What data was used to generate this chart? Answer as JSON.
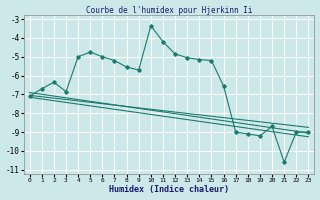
{
  "title": "Courbe de l'humidex pour Hjerkinn Ii",
  "xlabel": "Humidex (Indice chaleur)",
  "ylabel": "",
  "bg_color": "#cce8e8",
  "grid_color": "#ffffff",
  "line_color": "#1a7a6e",
  "xlim": [
    -0.5,
    23.5
  ],
  "ylim": [
    -11.2,
    -2.8
  ],
  "yticks": [
    -11,
    -10,
    -9,
    -8,
    -7,
    -6,
    -5,
    -4,
    -3
  ],
  "xticks": [
    0,
    1,
    2,
    3,
    4,
    5,
    6,
    7,
    8,
    9,
    10,
    11,
    12,
    13,
    14,
    15,
    16,
    17,
    18,
    19,
    20,
    21,
    22,
    23
  ],
  "main_line_x": [
    0,
    1,
    2,
    3,
    4,
    5,
    6,
    7,
    8,
    9,
    10,
    11,
    12,
    13,
    14,
    15,
    16,
    17,
    18,
    19,
    20,
    21,
    22,
    23
  ],
  "main_line_y": [
    -7.1,
    -6.7,
    -6.35,
    -6.85,
    -5.0,
    -4.75,
    -5.0,
    -5.2,
    -5.55,
    -5.7,
    -3.35,
    -4.2,
    -4.85,
    -5.05,
    -5.15,
    -5.2,
    -6.55,
    -9.0,
    -9.1,
    -9.2,
    -8.7,
    -10.6,
    -9.0,
    -9.0
  ],
  "trend1_x": [
    0,
    23
  ],
  "trend1_y": [
    -6.9,
    -9.05
  ],
  "trend2_x": [
    0,
    23
  ],
  "trend2_y": [
    -7.05,
    -8.75
  ],
  "trend3_x": [
    0,
    23
  ],
  "trend3_y": [
    -7.15,
    -9.25
  ]
}
